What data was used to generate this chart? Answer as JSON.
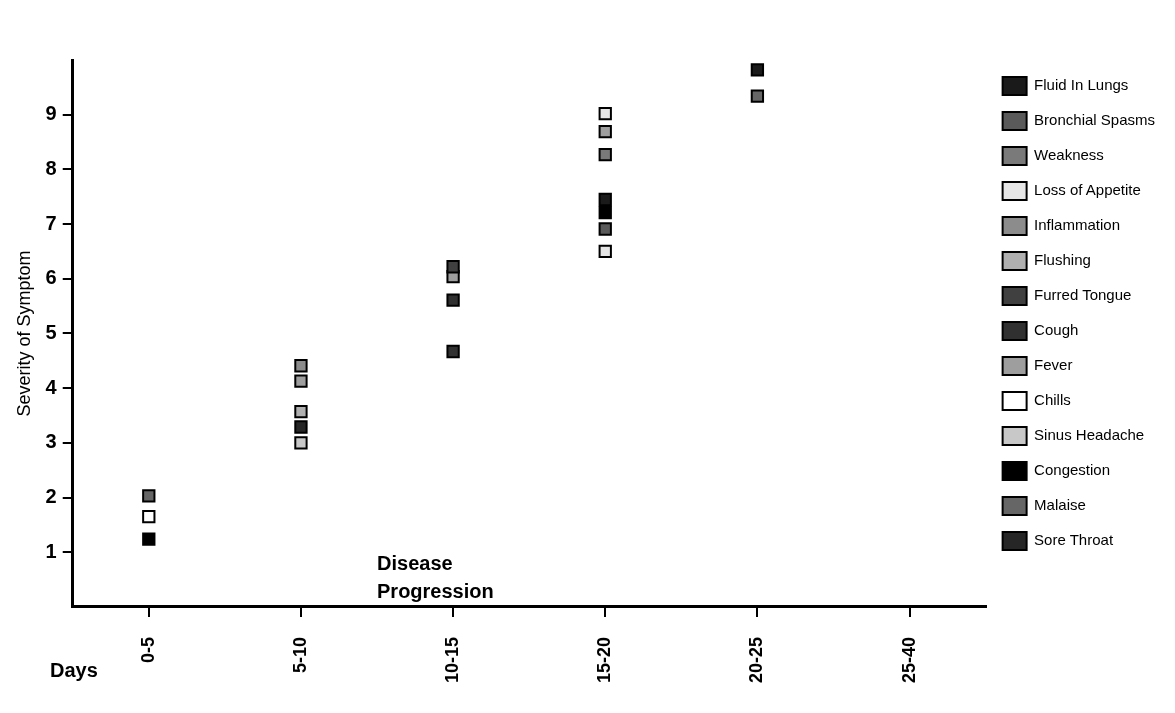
{
  "chart_data": {
    "type": "scatter",
    "xlabel": "Disease Progression",
    "ylabel": "Severity of Symptom",
    "annotations": [
      "Days"
    ],
    "categories": [
      "0-5",
      "5-10",
      "10-15",
      "15-20",
      "20-25",
      "25-40"
    ],
    "ylim": [
      0,
      10
    ],
    "yticks": [
      1,
      2,
      3,
      4,
      5,
      6,
      7,
      8,
      9
    ],
    "grid": false,
    "legend": "right",
    "marker": "square",
    "series": [
      {
        "name": "Fluid In Lungs",
        "color": "#1a1a1a",
        "x": [
          "15-20",
          "20-25"
        ],
        "values": [
          7.45,
          9.82
        ]
      },
      {
        "name": "Bronchial Spasms",
        "color": "#5a5a5a",
        "x": [
          "15-20"
        ],
        "values": [
          6.91
        ]
      },
      {
        "name": "Weakness",
        "color": "#7a7a7a",
        "x": [
          "15-20"
        ],
        "values": [
          8.27
        ]
      },
      {
        "name": "Loss of Appetite",
        "color": "#e6e6e6",
        "x": [
          "15-20",
          "15-20"
        ],
        "values": [
          6.5,
          9.02
        ]
      },
      {
        "name": "Inflammation",
        "color": "#8c8c8c",
        "x": [
          "5-10"
        ],
        "values": [
          4.41
        ]
      },
      {
        "name": "Flushing",
        "color": "#b0b0b0",
        "x": [
          "5-10"
        ],
        "values": [
          3.57
        ]
      },
      {
        "name": "Furred Tongue",
        "color": "#404040",
        "x": [
          "10-15"
        ],
        "values": [
          6.22
        ]
      },
      {
        "name": "Cough",
        "color": "#303030",
        "x": [
          "10-15",
          "10-15"
        ],
        "values": [
          4.67,
          5.61
        ]
      },
      {
        "name": "Fever",
        "color": "#9e9e9e",
        "x": [
          "5-10",
          "10-15",
          "15-20"
        ],
        "values": [
          4.13,
          6.04,
          8.69
        ]
      },
      {
        "name": "Chills",
        "color": "#ffffff",
        "x": [
          "0-5"
        ],
        "values": [
          1.65
        ]
      },
      {
        "name": "Sinus Headache",
        "color": "#c8c8c8",
        "x": [
          "5-10"
        ],
        "values": [
          3.0
        ]
      },
      {
        "name": "Congestion",
        "color": "#000000",
        "x": [
          "0-5",
          "15-20"
        ],
        "values": [
          1.24,
          7.21
        ]
      },
      {
        "name": "Malaise",
        "color": "#666666",
        "x": [
          "0-5",
          "20-25"
        ],
        "values": [
          2.03,
          9.34
        ]
      },
      {
        "name": "Sore Throat",
        "color": "#262626",
        "x": [
          "5-10"
        ],
        "values": [
          3.29
        ]
      }
    ]
  }
}
